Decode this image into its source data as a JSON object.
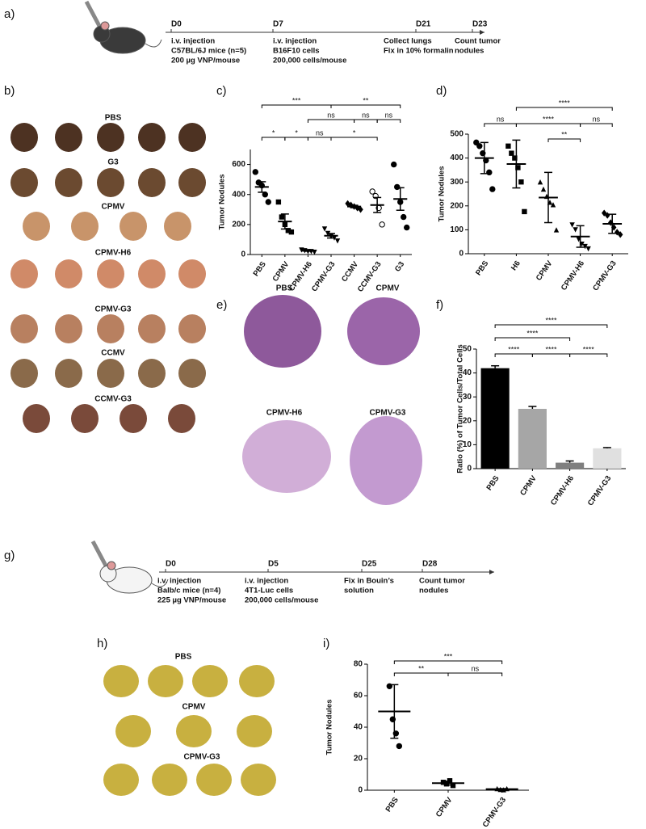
{
  "panel_labels": [
    "a)",
    "b)",
    "c)",
    "d)",
    "e)",
    "f)",
    "g)",
    "h)",
    "i)"
  ],
  "timelines": [
    {
      "days": [
        {
          "label": "D0",
          "lines": [
            "i.v. injection",
            "C57BL/6J mice (n=5)",
            "200 µg VNP/mouse"
          ]
        },
        {
          "label": "D7",
          "lines": [
            "i.v. injection",
            "B16F10 cells",
            "200,000 cells/mouse"
          ]
        },
        {
          "label": "D21",
          "lines": [
            "Collect lungs",
            "Fix in 10% formalin"
          ]
        },
        {
          "label": "D23",
          "lines": [
            "Count tumor",
            "nodules"
          ]
        }
      ]
    },
    {
      "days": [
        {
          "label": "D0",
          "lines": [
            "i.v. injection",
            "Balb/c mice (n=4)",
            "225 µg VNP/mouse"
          ]
        },
        {
          "label": "D5",
          "lines": [
            "i.v. injection",
            "4T1-Luc cells",
            "200,000 cells/mouse"
          ]
        },
        {
          "label": "D25",
          "lines": [
            "Fix in Bouin’s",
            "solution"
          ]
        },
        {
          "label": "D28",
          "lines": [
            "Count tumor",
            "nodules"
          ]
        }
      ]
    }
  ],
  "photo_panels": [
    {
      "labels": [
        "PBS",
        "G3",
        "CPMV",
        "CPMV-H6",
        "CPMV-G3",
        "CCMV",
        "CCMV-G3"
      ]
    },
    {
      "labels": [
        "PBS",
        "CPMV",
        "CPMV-H6",
        "CPMV-G3"
      ]
    },
    {
      "labels": [
        "PBS",
        "CPMV",
        "CPMV-G3"
      ]
    }
  ],
  "chart_data": [
    {
      "type": "dot",
      "ylabel": "Tumor Nodules",
      "categories": [
        "PBS",
        "CPMV",
        "CPMV-H6",
        "CPMV-G3",
        "CCMV",
        "CCMV-G3",
        "G3"
      ],
      "points": [
        [
          550,
          480,
          460,
          400,
          350
        ],
        [
          350,
          250,
          200,
          160,
          150
        ],
        [
          30,
          25,
          20,
          20,
          15
        ],
        [
          170,
          140,
          120,
          110,
          90
        ],
        [
          340,
          330,
          320,
          310,
          300
        ],
        [
          420,
          390,
          310,
          200
        ],
        [
          600,
          450,
          350,
          250,
          180
        ]
      ],
      "means": [
        450,
        220,
        25,
        125,
        320,
        330,
        370
      ],
      "errors": [
        35,
        50,
        3,
        15,
        8,
        50,
        75
      ],
      "markers": [
        "circle",
        "square",
        "triangle-down",
        "triangle-down",
        "diamond",
        "open-circle",
        "circle"
      ],
      "ylim": [
        0,
        700
      ],
      "yticks": [
        0,
        200,
        400,
        600
      ],
      "comparisons": [
        "***",
        "**",
        "ns",
        "ns",
        "ns",
        "*",
        "*",
        "ns",
        "*"
      ]
    },
    {
      "type": "dot",
      "ylabel": "Tumor Nodules",
      "categories": [
        "PBS",
        "H6",
        "CPMV",
        "CPMV-H6",
        "CPMV-G3"
      ],
      "points": [
        [
          465,
          450,
          420,
          390,
          340,
          270
        ],
        [
          450,
          420,
          400,
          360,
          300,
          176
        ],
        [
          300,
          270,
          240,
          215,
          205,
          100
        ],
        [
          120,
          100,
          60,
          40,
          30,
          20
        ],
        [
          170,
          160,
          130,
          110,
          90,
          80
        ]
      ],
      "means": [
        400,
        375,
        235,
        72,
        125
      ],
      "errors": [
        65,
        100,
        105,
        45,
        40
      ],
      "markers": [
        "circle",
        "square",
        "triangle-up",
        "triangle-down",
        "diamond"
      ],
      "ylim": [
        0,
        500
      ],
      "yticks": [
        0,
        100,
        200,
        300,
        400,
        500
      ],
      "comparisons": [
        "ns",
        "****",
        "****",
        "ns",
        "**"
      ]
    },
    {
      "type": "bar",
      "ylabel": "Ratio (%) of Tumor Cells/Total Cells",
      "categories": [
        "PBS",
        "CPMV",
        "CPMV-H6",
        "CPMV-G3"
      ],
      "values": [
        42,
        25,
        2.5,
        8.5
      ],
      "errors": [
        1,
        1,
        0.7,
        0.3
      ],
      "colors": [
        "#000000",
        "#a6a6a6",
        "#7f7f7f",
        "#e0e0e0"
      ],
      "ylim": [
        0,
        50
      ],
      "yticks": [
        0,
        10,
        20,
        30,
        40,
        50
      ],
      "comparisons": [
        "****",
        "****",
        "****",
        "****",
        "****"
      ]
    },
    {
      "type": "dot",
      "ylabel": "Tumor Nodules",
      "categories": [
        "PBS",
        "CPMV",
        "CPMV-G3"
      ],
      "points": [
        [
          66,
          45,
          36,
          28
        ],
        [
          5,
          4,
          6,
          3
        ],
        [
          1,
          0.5,
          0.3,
          1
        ]
      ],
      "means": [
        50,
        4.5,
        0.7
      ],
      "errors": [
        17,
        1.2,
        0.3
      ],
      "markers": [
        "circle",
        "square",
        "triangle-up"
      ],
      "ylim": [
        0,
        80
      ],
      "yticks": [
        0,
        20,
        40,
        60,
        80
      ],
      "comparisons": [
        "***",
        "**",
        "ns"
      ]
    }
  ]
}
